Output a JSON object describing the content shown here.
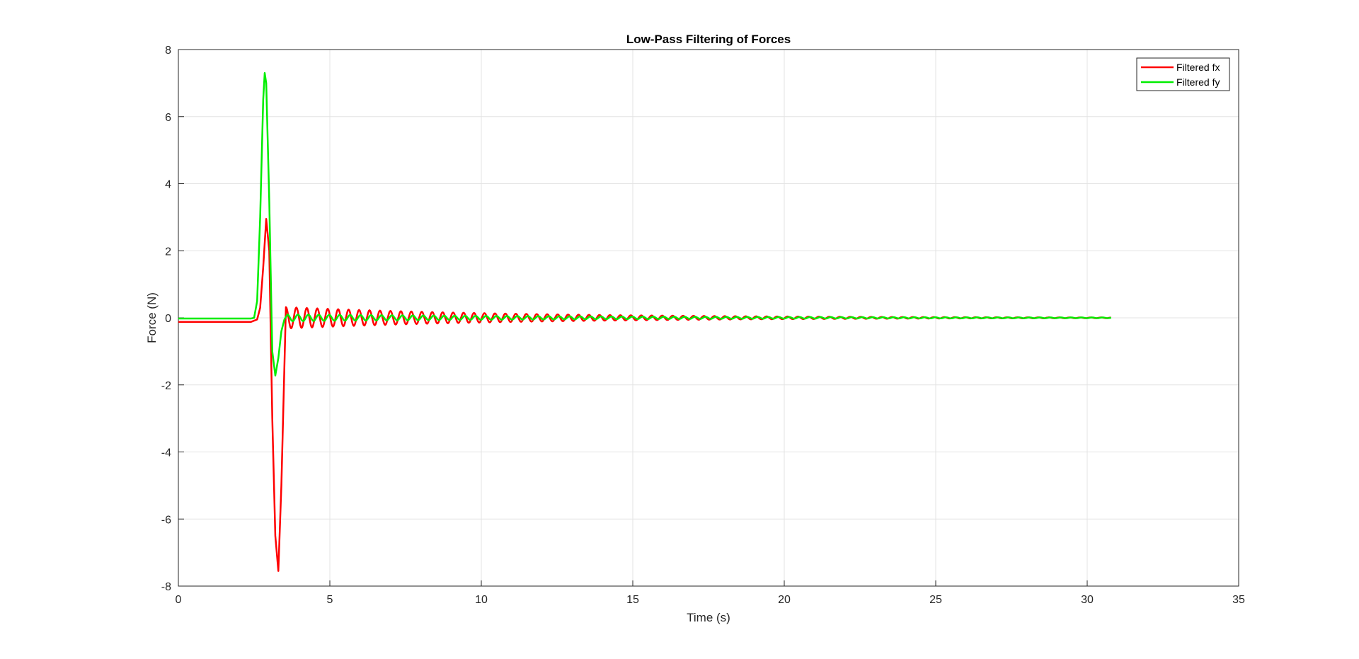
{
  "chart_data": {
    "type": "line",
    "title": "Low-Pass Filtering of Forces",
    "xlabel": "Time (s)",
    "ylabel": "Force (N)",
    "xlim": [
      0,
      35
    ],
    "ylim": [
      -8,
      8
    ],
    "xticks": [
      0,
      5,
      10,
      15,
      20,
      25,
      30,
      35
    ],
    "yticks": [
      8,
      6,
      4,
      2,
      0,
      -2,
      -4,
      -6,
      -8
    ],
    "grid": true,
    "legend_position": "top-right",
    "series": [
      {
        "name": "Filtered fx",
        "color": "#ff0000",
        "x": [
          0,
          2.4,
          2.6,
          2.7,
          2.8,
          2.9,
          3.0,
          3.1,
          3.2,
          3.3,
          3.4,
          3.55,
          3.7,
          30.8
        ],
        "y": [
          -0.12,
          -0.12,
          -0.05,
          0.3,
          1.5,
          2.95,
          2.0,
          -3.0,
          -6.5,
          -7.55,
          -5.0,
          0.28,
          0.0,
          0.0
        ],
        "oscillation": {
          "start": 3.55,
          "end": 30.8,
          "period": 0.345,
          "amp_start": 0.32,
          "amp_end": 0.01
        }
      },
      {
        "name": "Filtered fy",
        "color": "#00ee00",
        "x": [
          0,
          2.4,
          2.5,
          2.6,
          2.7,
          2.8,
          2.85,
          2.9,
          3.0,
          3.1,
          3.2,
          3.3,
          3.4,
          3.5,
          3.6,
          30.8
        ],
        "y": [
          -0.02,
          -0.02,
          0.0,
          0.5,
          3.0,
          6.5,
          7.3,
          7.0,
          3.5,
          -1.0,
          -1.72,
          -1.2,
          -0.4,
          -0.05,
          0.0,
          0.0
        ],
        "oscillation": {
          "start": 3.6,
          "end": 30.8,
          "period": 0.345,
          "amp_start": 0.1,
          "amp_end": 0.01
        }
      }
    ]
  }
}
